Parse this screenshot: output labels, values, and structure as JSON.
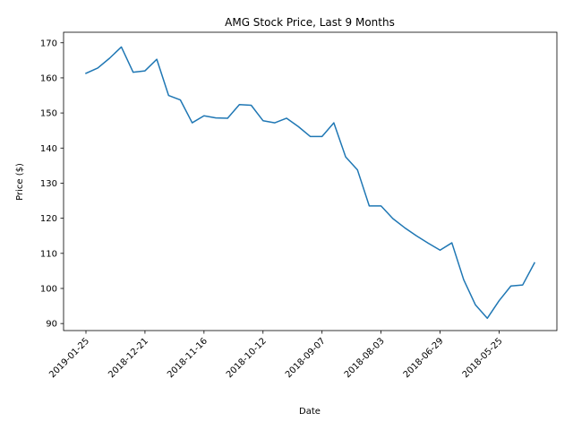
{
  "chart_data": {
    "type": "line",
    "title": "AMG Stock Price, Last 9 Months",
    "xlabel": "Date",
    "ylabel": "Price ($)",
    "x_tick_labels": [
      "2019-01-25",
      "2018-12-21",
      "2018-11-16",
      "2018-10-12",
      "2018-09-07",
      "2018-08-03",
      "2018-06-29",
      "2018-05-25"
    ],
    "y_ticks": [
      90,
      100,
      110,
      120,
      130,
      140,
      150,
      160,
      170
    ],
    "ylim": [
      88,
      173
    ],
    "grid": false,
    "series": [
      {
        "color": "#1f77b4",
        "x": [
          "2019-01-25",
          "2019-01-18",
          "2019-01-11",
          "2019-01-04",
          "2018-12-28",
          "2018-12-21",
          "2018-12-14",
          "2018-12-07",
          "2018-11-30",
          "2018-11-23",
          "2018-11-16",
          "2018-11-09",
          "2018-11-02",
          "2018-10-26",
          "2018-10-19",
          "2018-10-12",
          "2018-10-05",
          "2018-09-28",
          "2018-09-21",
          "2018-09-14",
          "2018-09-07",
          "2018-08-31",
          "2018-08-24",
          "2018-08-17",
          "2018-08-10",
          "2018-08-03",
          "2018-07-27",
          "2018-07-20",
          "2018-07-13",
          "2018-07-06",
          "2018-06-29",
          "2018-06-22",
          "2018-06-15",
          "2018-06-08",
          "2018-06-01",
          "2018-05-25",
          "2018-05-18",
          "2018-05-11",
          "2018-05-04"
        ],
        "values": [
          161.3,
          162.8,
          165.6,
          168.8,
          161.6,
          162.0,
          165.3,
          155.0,
          153.7,
          147.2,
          149.2,
          148.6,
          148.5,
          152.4,
          152.2,
          147.8,
          147.2,
          148.5,
          146.1,
          143.3,
          143.3,
          147.2,
          137.5,
          133.8,
          123.5,
          123.5,
          119.9,
          117.3,
          115.0,
          112.9,
          110.9,
          113.0,
          102.5,
          95.3,
          91.5,
          96.5,
          100.7,
          101.0,
          107.3
        ]
      }
    ]
  }
}
